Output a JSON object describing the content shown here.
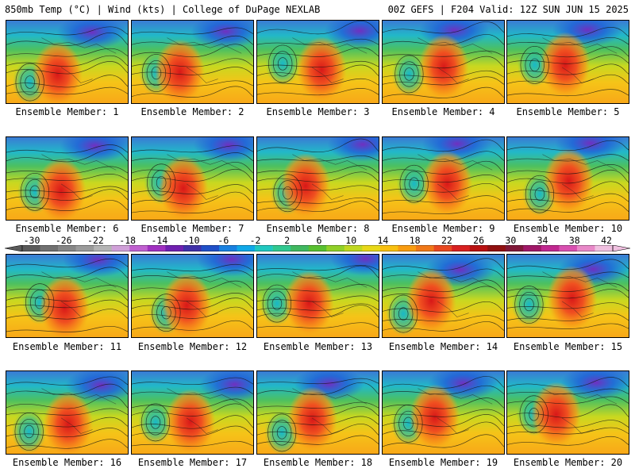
{
  "header": {
    "left": "850mb Temp (°C) | Wind (kts) | College of DuPage NEXLAB",
    "right": "00Z GEFS | F204 Valid: 12Z SUN JUN 15 2025"
  },
  "members": [
    {
      "label": "Ensemble Member: 1"
    },
    {
      "label": "Ensemble Member: 2"
    },
    {
      "label": "Ensemble Member: 3"
    },
    {
      "label": "Ensemble Member: 4"
    },
    {
      "label": "Ensemble Member: 5"
    },
    {
      "label": "Ensemble Member: 6"
    },
    {
      "label": "Ensemble Member: 7"
    },
    {
      "label": "Ensemble Member: 8"
    },
    {
      "label": "Ensemble Member: 9"
    },
    {
      "label": "Ensemble Member: 10"
    },
    {
      "label": "Ensemble Member: 11"
    },
    {
      "label": "Ensemble Member: 12"
    },
    {
      "label": "Ensemble Member: 13"
    },
    {
      "label": "Ensemble Member: 14"
    },
    {
      "label": "Ensemble Member: 15"
    },
    {
      "label": "Ensemble Member: 16"
    },
    {
      "label": "Ensemble Member: 17"
    },
    {
      "label": "Ensemble Member: 18"
    },
    {
      "label": "Ensemble Member: 19"
    },
    {
      "label": "Ensemble Member: 20"
    }
  ],
  "colorbar": {
    "labels": [
      "-30",
      "-26",
      "-22",
      "-18",
      "-14",
      "-10",
      "-6",
      "-2",
      "2",
      "6",
      "10",
      "14",
      "18",
      "22",
      "26",
      "30",
      "34",
      "38",
      "42"
    ],
    "colors": [
      "#5a5a5a",
      "#707070",
      "#868686",
      "#9a9a9a",
      "#b4b4b4",
      "#d0a0d8",
      "#c060d0",
      "#a030c0",
      "#7020b0",
      "#4030a8",
      "#2050c8",
      "#1880e0",
      "#10a8e8",
      "#20c8c0",
      "#30c890",
      "#40b860",
      "#58c030",
      "#90d028",
      "#c0d820",
      "#e8d818",
      "#f8c010",
      "#f89c10",
      "#f07818",
      "#e84820",
      "#d82020",
      "#b81010",
      "#901010",
      "#801838",
      "#a01868",
      "#c02890",
      "#d850b0",
      "#e888c8",
      "#f0c0e0"
    ]
  }
}
